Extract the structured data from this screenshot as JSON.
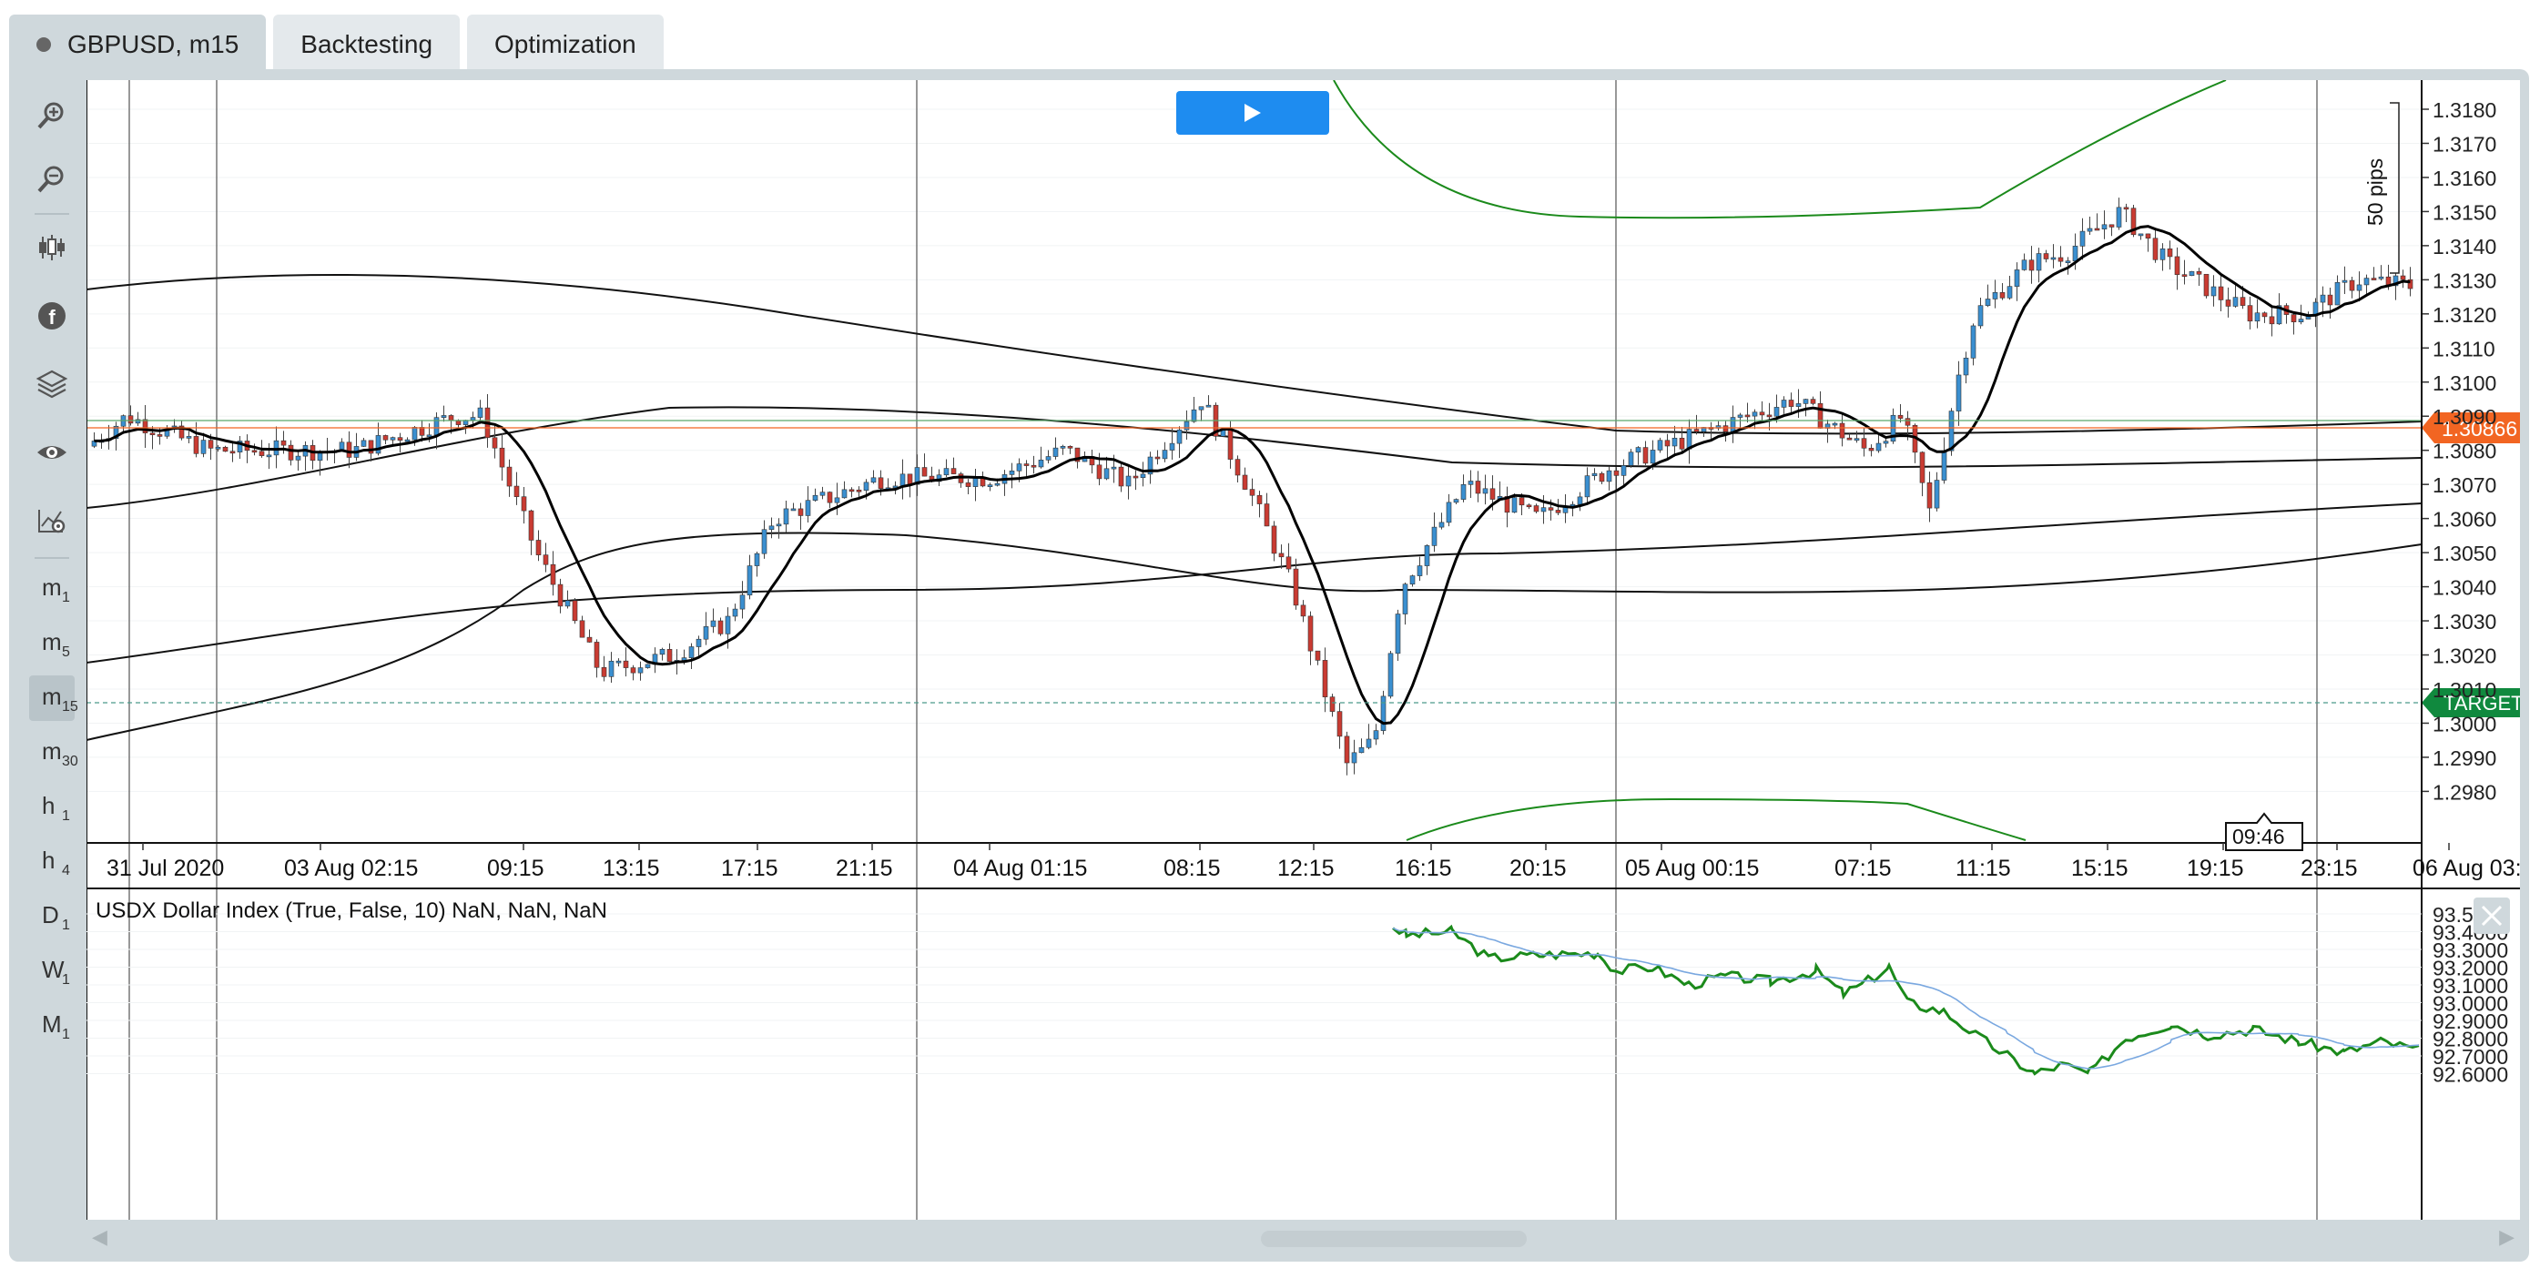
{
  "tabs": [
    {
      "label": "GBPUSD, m15",
      "active": true
    },
    {
      "label": "Backtesting",
      "active": false
    },
    {
      "label": "Optimization",
      "active": false
    }
  ],
  "toolbar": {
    "icons": [
      "zoom-in-icon",
      "zoom-out-icon",
      "candles-icon",
      "indicator-f-icon",
      "layers-icon",
      "eye-icon",
      "chart-settings-icon"
    ],
    "timeframes": [
      {
        "l": "m",
        "s": "1"
      },
      {
        "l": "m",
        "s": "5"
      },
      {
        "l": "m",
        "s": "15"
      },
      {
        "l": "m",
        "s": "30"
      },
      {
        "l": "h",
        "s": "1"
      },
      {
        "l": "h",
        "s": "4"
      },
      {
        "l": "D",
        "s": "1"
      },
      {
        "l": "W",
        "s": "1"
      },
      {
        "l": "M",
        "s": "1"
      }
    ],
    "selected_timeframe": "15"
  },
  "chart": {
    "price_ticks": [
      "1.3180",
      "1.3170",
      "1.3160",
      "1.3150",
      "1.3140",
      "1.3130",
      "1.3120",
      "1.3110",
      "1.3100",
      "1.3090",
      "1.3080",
      "1.3070",
      "1.3060",
      "1.3050",
      "1.3040",
      "1.3030",
      "1.3020",
      "1.3010",
      "1.3000",
      "1.2990",
      "1.2980"
    ],
    "price_label": "1.30866",
    "price_value": 1.30866,
    "target_label": "TARGET",
    "target_value": 1.3006,
    "pips_label": "50 pips",
    "cursor_time": "09:46",
    "time_ticks": [
      "31 Jul 2020",
      "03 Aug 02:15",
      "09:15",
      "13:15",
      "17:15",
      "21:15",
      "04 Aug 01:15",
      "08:15",
      "12:15",
      "16:15",
      "20:15",
      "05 Aug 00:15",
      "07:15",
      "11:15",
      "15:15",
      "19:15",
      "23:15",
      "06 Aug 03:"
    ],
    "colors": {
      "bull": "#3a8fd0",
      "bear": "#c93b32",
      "band": "#1b8a1b",
      "price": "#f26522",
      "target": "#10893e"
    }
  },
  "indicator": {
    "title": "USDX Dollar Index (True, False, 10) NaN, NaN, NaN",
    "ticks": [
      "93.5000",
      "93.4000",
      "93.3000",
      "93.2000",
      "93.1000",
      "93.0000",
      "92.9000",
      "92.8000",
      "92.7000",
      "92.6000"
    ],
    "close_icon": "close-icon",
    "line_color": "#1b8a1b",
    "ma_color": "#7aa8e0"
  },
  "play_icon": "play-icon"
}
